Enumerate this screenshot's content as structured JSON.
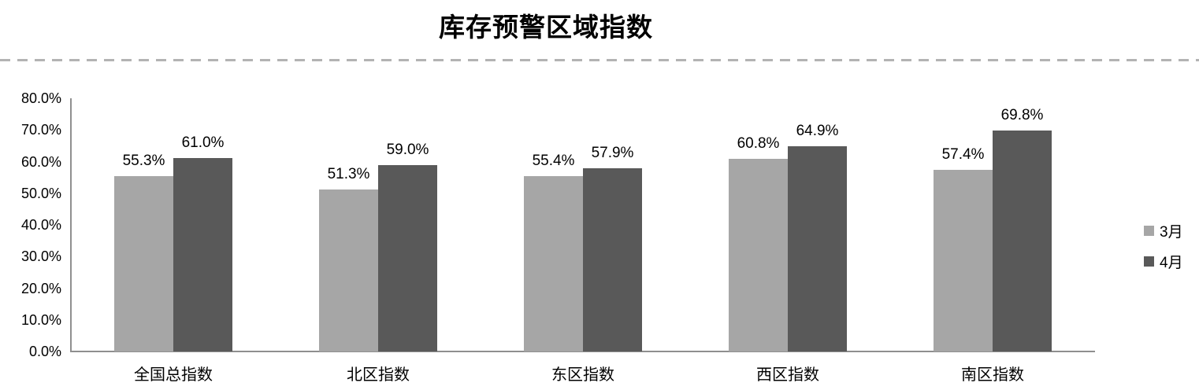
{
  "title": "库存预警区域指数",
  "colors": {
    "series_march": "#a6a6a6",
    "series_april": "#595959",
    "axis_line": "#8f8f8f",
    "divider_dash": "#b3b3b3",
    "text": "#000000",
    "background": "#ffffff"
  },
  "legend": {
    "position": "right",
    "items": [
      {
        "label": "3月",
        "color": "#a6a6a6"
      },
      {
        "label": "4月",
        "color": "#595959"
      }
    ]
  },
  "chart_data": {
    "type": "bar",
    "title": "库存预警区域指数",
    "categories": [
      "全国总指数",
      "北区指数",
      "东区指数",
      "西区指数",
      "南区指数"
    ],
    "series": [
      {
        "name": "3月",
        "color": "#a6a6a6",
        "values": [
          55.3,
          51.3,
          55.4,
          60.8,
          57.4
        ]
      },
      {
        "name": "4月",
        "color": "#595959",
        "values": [
          61.0,
          59.0,
          57.9,
          64.9,
          69.8
        ]
      }
    ],
    "data_labels": [
      [
        "55.3%",
        "51.3%",
        "55.4%",
        "60.8%",
        "57.4%"
      ],
      [
        "61.0%",
        "59.0%",
        "57.9%",
        "64.9%",
        "69.8%"
      ]
    ],
    "xlabel": "",
    "ylabel": "",
    "ylim": [
      0,
      80
    ],
    "ytick_step": 10,
    "ytick_labels": [
      "0.0%",
      "10.0%",
      "20.0%",
      "30.0%",
      "40.0%",
      "50.0%",
      "60.0%",
      "70.0%",
      "80.0%"
    ],
    "grid": false,
    "legend_position": "right"
  }
}
